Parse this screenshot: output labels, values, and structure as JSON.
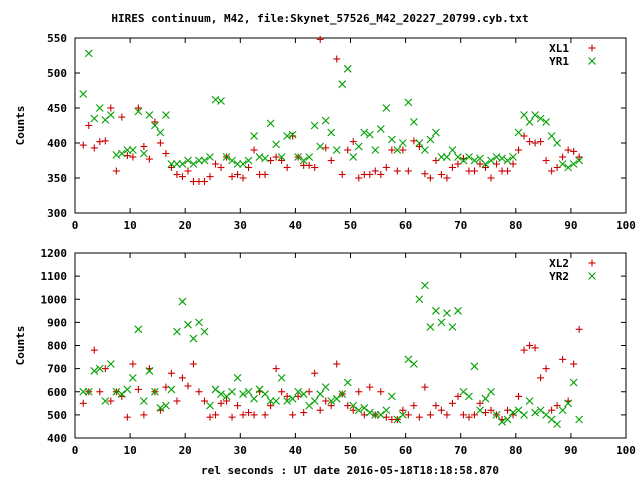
{
  "title": "HIRES continuum, M42, file:Skynet_57526_M42_20227_20799.cyb.txt",
  "xlabel": "rel seconds : UT date 2016-05-18T18:18:58.870",
  "colors": {
    "red": "#cc0000",
    "green": "#00a000"
  },
  "chart_data": [
    {
      "type": "scatter",
      "ylabel": "Counts",
      "xlim": [
        0,
        100
      ],
      "ylim": [
        300,
        550
      ],
      "xticks": [
        0,
        10,
        20,
        30,
        40,
        50,
        60,
        70,
        80,
        90,
        100
      ],
      "yticks": [
        300,
        350,
        400,
        450,
        500,
        550
      ],
      "legend_position": "top-right",
      "series": [
        {
          "name": "XL1",
          "marker": "plus",
          "color": "#cc0000",
          "x": [
            1.5,
            2.5,
            3.5,
            4.5,
            5.5,
            6.5,
            7.5,
            8.5,
            9.5,
            10.5,
            11.5,
            12.5,
            13.5,
            14.5,
            15.5,
            16.5,
            17.5,
            18.5,
            19.5,
            20.5,
            21.5,
            22.5,
            23.5,
            24.5,
            25.5,
            26.5,
            27.5,
            28.5,
            29.5,
            30.5,
            31.5,
            32.5,
            33.5,
            34.5,
            35.5,
            36.5,
            37.5,
            38.5,
            39.5,
            40.5,
            41.5,
            42.5,
            43.5,
            44.5,
            45.5,
            46.5,
            47.5,
            48.5,
            49.5,
            50.5,
            51.5,
            52.5,
            53.5,
            54.5,
            55.5,
            56.5,
            57.5,
            58.5,
            59.5,
            60.5,
            61.5,
            62.5,
            63.5,
            64.5,
            65.5,
            66.5,
            67.5,
            68.5,
            69.5,
            70.5,
            71.5,
            72.5,
            73.5,
            74.5,
            75.5,
            76.5,
            77.5,
            78.5,
            79.5,
            80.5,
            81.5,
            82.5,
            83.5,
            84.5,
            85.5,
            86.5,
            87.5,
            88.5,
            89.5,
            90.5,
            91.5
          ],
          "y": [
            397,
            425,
            393,
            402,
            403,
            450,
            360,
            437,
            382,
            380,
            450,
            395,
            377,
            430,
            400,
            385,
            365,
            355,
            352,
            360,
            345,
            345,
            345,
            352,
            370,
            365,
            380,
            352,
            355,
            350,
            365,
            390,
            355,
            355,
            375,
            380,
            375,
            365,
            410,
            380,
            368,
            368,
            365,
            548,
            393,
            375,
            520,
            355,
            390,
            402,
            350,
            355,
            355,
            360,
            355,
            365,
            390,
            360,
            390,
            360,
            403,
            395,
            356,
            350,
            375,
            355,
            350,
            365,
            370,
            378,
            360,
            360,
            370,
            365,
            350,
            370,
            360,
            360,
            370,
            390,
            410,
            402,
            400,
            402,
            375,
            360,
            365,
            380,
            390,
            388,
            380
          ]
        },
        {
          "name": "YR1",
          "marker": "x",
          "color": "#00a000",
          "x": [
            1.5,
            2.5,
            3.5,
            4.5,
            5.5,
            6.5,
            7.5,
            8.5,
            9.5,
            10.5,
            11.5,
            12.5,
            13.5,
            14.5,
            15.5,
            16.5,
            17.5,
            18.5,
            19.5,
            20.5,
            21.5,
            22.5,
            23.5,
            24.5,
            25.5,
            26.5,
            27.5,
            28.5,
            29.5,
            30.5,
            31.5,
            32.5,
            33.5,
            34.5,
            35.5,
            36.5,
            37.5,
            38.5,
            39.5,
            40.5,
            41.5,
            42.5,
            43.5,
            44.5,
            45.5,
            46.5,
            47.5,
            48.5,
            49.5,
            50.5,
            51.5,
            52.5,
            53.5,
            54.5,
            55.5,
            56.5,
            57.5,
            58.5,
            59.5,
            60.5,
            61.5,
            62.5,
            63.5,
            64.5,
            65.5,
            66.5,
            67.5,
            68.5,
            69.5,
            70.5,
            71.5,
            72.5,
            73.5,
            74.5,
            75.5,
            76.5,
            77.5,
            78.5,
            79.5,
            80.5,
            81.5,
            82.5,
            83.5,
            84.5,
            85.5,
            86.5,
            87.5,
            88.5,
            89.5,
            90.5,
            91.5
          ],
          "y": [
            470,
            528,
            435,
            450,
            433,
            440,
            383,
            385,
            390,
            390,
            445,
            385,
            440,
            425,
            415,
            440,
            370,
            370,
            370,
            375,
            370,
            375,
            375,
            380,
            462,
            460,
            380,
            375,
            370,
            370,
            375,
            410,
            380,
            378,
            428,
            398,
            380,
            410,
            412,
            380,
            375,
            380,
            425,
            395,
            432,
            415,
            390,
            484,
            506,
            380,
            395,
            415,
            412,
            390,
            420,
            450,
            405,
            390,
            400,
            458,
            430,
            400,
            390,
            405,
            415,
            380,
            380,
            390,
            380,
            375,
            380,
            375,
            378,
            370,
            375,
            380,
            378,
            375,
            380,
            415,
            440,
            430,
            440,
            435,
            430,
            410,
            400,
            370,
            365,
            370,
            375
          ]
        }
      ]
    },
    {
      "type": "scatter",
      "ylabel": "Counts",
      "xlim": [
        0,
        100
      ],
      "ylim": [
        400,
        1200
      ],
      "xticks": [
        0,
        10,
        20,
        30,
        40,
        50,
        60,
        70,
        80,
        90,
        100
      ],
      "yticks": [
        400,
        500,
        600,
        700,
        800,
        900,
        1000,
        1100,
        1200
      ],
      "legend_position": "top-right",
      "series": [
        {
          "name": "XL2",
          "marker": "plus",
          "color": "#cc0000",
          "x": [
            1.5,
            2.5,
            3.5,
            4.5,
            5.5,
            6.5,
            7.5,
            8.5,
            9.5,
            10.5,
            11.5,
            12.5,
            13.5,
            14.5,
            15.5,
            16.5,
            17.5,
            18.5,
            19.5,
            20.5,
            21.5,
            22.5,
            23.5,
            24.5,
            25.5,
            26.5,
            27.5,
            28.5,
            29.5,
            30.5,
            31.5,
            32.5,
            33.5,
            34.5,
            35.5,
            36.5,
            37.5,
            38.5,
            39.5,
            40.5,
            41.5,
            42.5,
            43.5,
            44.5,
            45.5,
            46.5,
            47.5,
            48.5,
            49.5,
            50.5,
            51.5,
            52.5,
            53.5,
            54.5,
            55.5,
            56.5,
            57.5,
            58.5,
            59.5,
            60.5,
            61.5,
            62.5,
            63.5,
            64.5,
            65.5,
            66.5,
            67.5,
            68.5,
            69.5,
            70.5,
            71.5,
            72.5,
            73.5,
            74.5,
            75.5,
            76.5,
            77.5,
            78.5,
            79.5,
            80.5,
            81.5,
            82.5,
            83.5,
            84.5,
            85.5,
            86.5,
            87.5,
            88.5,
            89.5,
            90.5,
            91.5
          ],
          "y": [
            550,
            600,
            780,
            600,
            700,
            560,
            600,
            580,
            490,
            720,
            610,
            500,
            700,
            600,
            520,
            620,
            680,
            560,
            660,
            625,
            720,
            600,
            560,
            490,
            500,
            550,
            560,
            490,
            540,
            500,
            510,
            500,
            600,
            500,
            540,
            700,
            600,
            580,
            500,
            580,
            510,
            600,
            680,
            520,
            560,
            540,
            720,
            590,
            540,
            520,
            600,
            500,
            620,
            500,
            600,
            490,
            480,
            480,
            520,
            500,
            540,
            490,
            620,
            500,
            540,
            520,
            500,
            550,
            580,
            500,
            490,
            500,
            550,
            510,
            520,
            500,
            480,
            520,
            500,
            580,
            780,
            800,
            790,
            660,
            700,
            520,
            540,
            740,
            560,
            720,
            870
          ]
        },
        {
          "name": "YR2",
          "marker": "x",
          "color": "#00a000",
          "x": [
            1.5,
            2.5,
            3.5,
            4.5,
            5.5,
            6.5,
            7.5,
            8.5,
            9.5,
            10.5,
            11.5,
            12.5,
            13.5,
            14.5,
            15.5,
            16.5,
            17.5,
            18.5,
            19.5,
            20.5,
            21.5,
            22.5,
            23.5,
            24.5,
            25.5,
            26.5,
            27.5,
            28.5,
            29.5,
            30.5,
            31.5,
            32.5,
            33.5,
            34.5,
            35.5,
            36.5,
            37.5,
            38.5,
            39.5,
            40.5,
            41.5,
            42.5,
            43.5,
            44.5,
            45.5,
            46.5,
            47.5,
            48.5,
            49.5,
            50.5,
            51.5,
            52.5,
            53.5,
            54.5,
            55.5,
            56.5,
            57.5,
            58.5,
            59.5,
            60.5,
            61.5,
            62.5,
            63.5,
            64.5,
            65.5,
            66.5,
            67.5,
            68.5,
            69.5,
            70.5,
            71.5,
            72.5,
            73.5,
            74.5,
            75.5,
            76.5,
            77.5,
            78.5,
            79.5,
            80.5,
            81.5,
            82.5,
            83.5,
            84.5,
            85.5,
            86.5,
            87.5,
            88.5,
            89.5,
            90.5,
            91.5
          ],
          "y": [
            600,
            600,
            690,
            700,
            560,
            720,
            600,
            590,
            610,
            660,
            870,
            560,
            690,
            600,
            530,
            540,
            610,
            860,
            990,
            890,
            830,
            900,
            860,
            540,
            610,
            590,
            580,
            600,
            660,
            590,
            600,
            570,
            610,
            590,
            560,
            560,
            660,
            560,
            570,
            600,
            590,
            540,
            560,
            590,
            620,
            560,
            570,
            590,
            640,
            540,
            520,
            530,
            510,
            500,
            500,
            520,
            580,
            480,
            500,
            740,
            720,
            1000,
            1060,
            880,
            950,
            900,
            940,
            880,
            950,
            600,
            580,
            710,
            520,
            570,
            600,
            500,
            470,
            480,
            510,
            520,
            500,
            560,
            510,
            520,
            500,
            480,
            460,
            520,
            550,
            640,
            480
          ]
        }
      ]
    }
  ]
}
